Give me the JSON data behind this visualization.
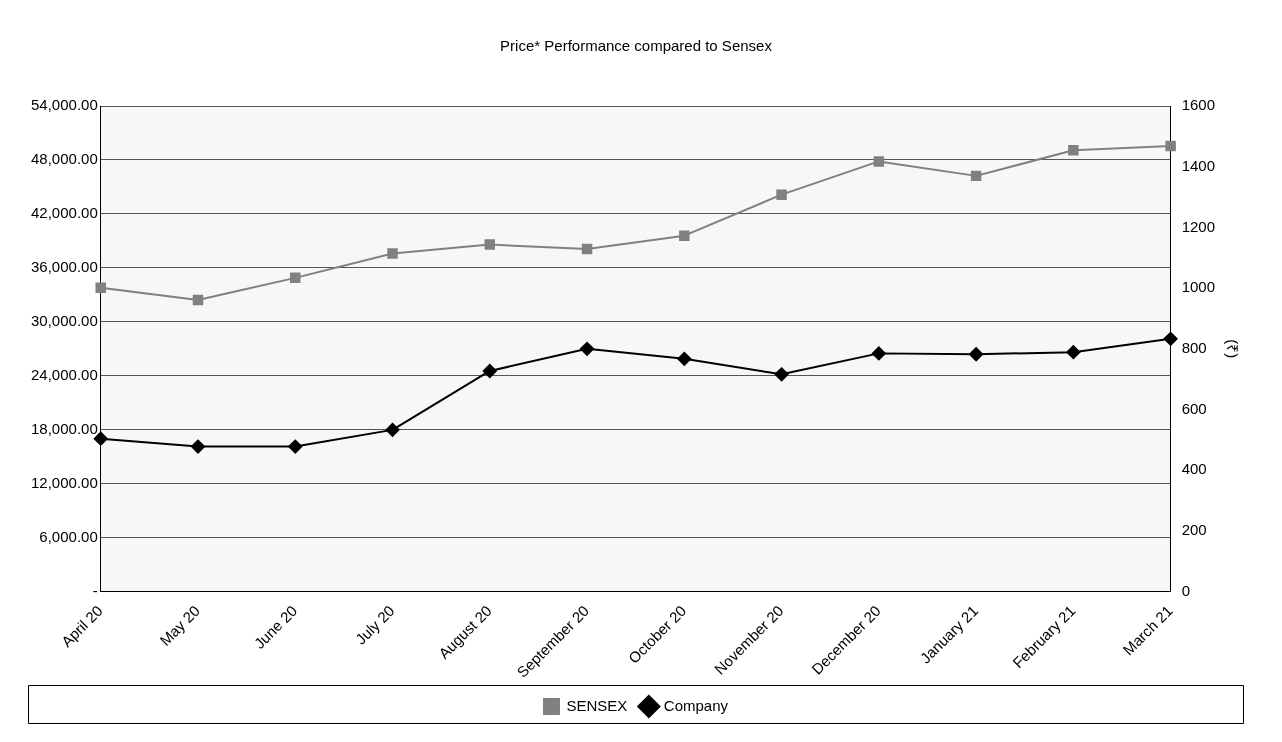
{
  "chart_data": {
    "type": "line",
    "title": "Price* Performance compared to Sensex",
    "y2label": "(₹)",
    "categories": [
      "April 20",
      "May 20",
      "June 20",
      "July 20",
      "August 20",
      "September 20",
      "October 20",
      "November 20",
      "December 20",
      "January 21",
      "February 21",
      "March 21"
    ],
    "series": [
      {
        "name": "SENSEX",
        "color": "#808080",
        "marker": "square",
        "values": [
          33780,
          32420,
          34890,
          37600,
          38590,
          38100,
          39580,
          44140,
          47840,
          46230,
          49070,
          49560
        ]
      },
      {
        "name": "Company",
        "color": "#000000",
        "marker": "diamond",
        "axis": "y2",
        "values": [
          504,
          478,
          478,
          533,
          727,
          800,
          767,
          716,
          785,
          782,
          789,
          833
        ]
      }
    ],
    "ylim": [
      0,
      54000
    ],
    "yticks": [
      {
        "value": 0,
        "label": "-"
      },
      {
        "value": 6000,
        "label": "6,000.00"
      },
      {
        "value": 12000,
        "label": "12,000.00"
      },
      {
        "value": 18000,
        "label": "18,000.00"
      },
      {
        "value": 24000,
        "label": "24,000.00"
      },
      {
        "value": 30000,
        "label": "30,000.00"
      },
      {
        "value": 36000,
        "label": "36,000.00"
      },
      {
        "value": 42000,
        "label": "42,000.00"
      },
      {
        "value": 48000,
        "label": "48,000.00"
      },
      {
        "value": 54000,
        "label": "54,000.00"
      }
    ],
    "y2lim": [
      0,
      1600
    ],
    "y2ticks": [
      0,
      200,
      400,
      600,
      800,
      1000,
      1200,
      1400,
      1600
    ],
    "grid": "y",
    "legend": "bottom",
    "line_style": "solid"
  }
}
